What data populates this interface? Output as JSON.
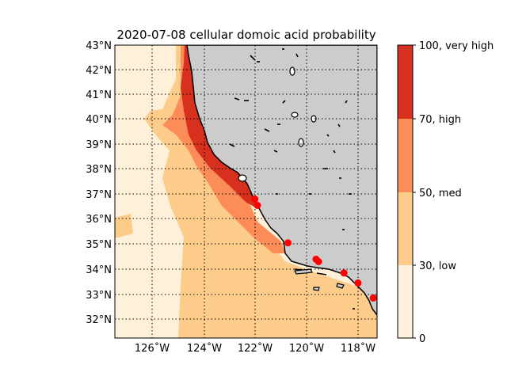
{
  "map": {
    "title": "2020-07-08 cellular domoic acid probability",
    "lat_labels": [
      "43°N",
      "42°N",
      "41°N",
      "40°N",
      "39°N",
      "38°N",
      "37°N",
      "36°N",
      "35°N",
      "34°N",
      "33°N",
      "32°N"
    ],
    "lon_labels": [
      "126˚W",
      "124˚W",
      "122˚W",
      "120˚W",
      "118˚W"
    ],
    "lat_range": [
      31.3,
      43
    ],
    "lon_range": [
      -127.5,
      -117.2
    ],
    "land_color": "#cccccc",
    "grid": "dotted",
    "observation_points": [
      {
        "lon": -122.0,
        "lat": 36.85
      },
      {
        "lon": -121.9,
        "lat": 36.6
      },
      {
        "lon": -120.7,
        "lat": 35.1
      },
      {
        "lon": -119.6,
        "lat": 34.45
      },
      {
        "lon": -119.5,
        "lat": 34.35
      },
      {
        "lon": -118.5,
        "lat": 33.9
      },
      {
        "lon": -117.95,
        "lat": 33.5
      },
      {
        "lon": -117.35,
        "lat": 32.9
      }
    ],
    "point_color": "#ff0000"
  },
  "colorbar": {
    "labels": [
      "100, very high",
      "70, high",
      "50, med",
      "30, low",
      "0"
    ],
    "colors": [
      "#d7301f",
      "#fc8d59",
      "#fdcc8a",
      "#fef0d9"
    ],
    "values": [
      100,
      70,
      50,
      30,
      0
    ]
  }
}
